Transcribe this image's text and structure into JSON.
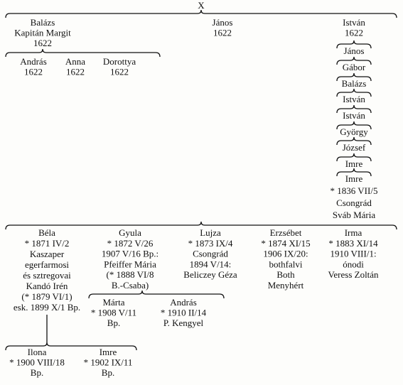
{
  "root": "X",
  "nodes": [
    {
      "lines": [
        "Balázs",
        "Kapitán Margit",
        "1622"
      ]
    },
    {
      "lines": [
        "András",
        "1622"
      ]
    },
    {
      "lines": [
        "Anna",
        "1622"
      ]
    },
    {
      "lines": [
        "Dorottya",
        "1622"
      ]
    },
    {
      "lines": [
        "János",
        "1622"
      ]
    },
    {
      "lines": [
        "István",
        "1622"
      ]
    },
    {
      "lines": [
        "János"
      ]
    },
    {
      "lines": [
        "Gábor"
      ]
    },
    {
      "lines": [
        "Balázs"
      ]
    },
    {
      "lines": [
        "István"
      ]
    },
    {
      "lines": [
        "István"
      ]
    },
    {
      "lines": [
        "György"
      ]
    },
    {
      "lines": [
        "József"
      ]
    },
    {
      "lines": [
        "Imre"
      ]
    },
    {
      "lines": [
        "Imre",
        "* 1836 VII/5",
        "Csongrád",
        "Sváb Mária"
      ]
    },
    {
      "lines": [
        "Béla",
        "* 1871 IV/2",
        "Kaszaper",
        "egerfarmosi",
        "és sztregovai",
        "Kandó Irén",
        "(* 1879 VI/1)",
        "esk. 1899 X/1 Bp."
      ]
    },
    {
      "lines": [
        "Gyula",
        "* 1872 V/26",
        "1907 V/16 Bp.:",
        "Pfeiffer Mária",
        "(* 1888 VI/8",
        "B.-Csaba)"
      ]
    },
    {
      "lines": [
        "Lujza",
        "* 1873 IX/4",
        "Csongrád",
        "1894 V/14:",
        "Beliczey Géza"
      ]
    },
    {
      "lines": [
        "Erzsébet",
        "* 1874 XI/15",
        "1906 IX/20:",
        "bothfalvi",
        "Both",
        "Menyhért"
      ]
    },
    {
      "lines": [
        "Irma",
        "* 1883 XI/14",
        "1910 VIII/1:",
        "ónodi",
        "Veress Zoltán"
      ]
    },
    {
      "lines": [
        "Márta",
        "* 1908 V/11",
        "Bp."
      ]
    },
    {
      "lines": [
        "András",
        "* 1910 II/14",
        "P. Kengyel"
      ]
    },
    {
      "lines": [
        "Ilona",
        "* 1900 VIII/18",
        "Bp."
      ]
    },
    {
      "lines": [
        "Imre",
        "* 1902 IX/11",
        "Bp."
      ]
    }
  ]
}
